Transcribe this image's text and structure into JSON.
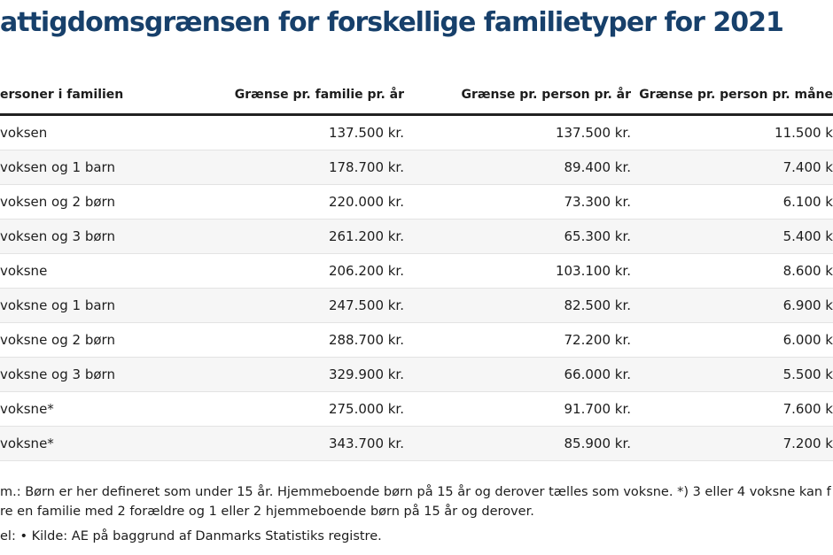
{
  "title": "attigdomsgrænsen for forskellige familietyper for 2021",
  "table": {
    "header": [
      "ersoner i familien",
      "Grænse pr. familie pr. år",
      "Grænse pr. person pr. år",
      "Grænse pr. person pr. måne"
    ],
    "rows": [
      [
        "voksen",
        "137.500 kr.",
        "137.500 kr.",
        "11.500 k"
      ],
      [
        "voksen og 1 barn",
        "178.700 kr.",
        "89.400 kr.",
        "7.400 k"
      ],
      [
        "voksen og 2 børn",
        "220.000 kr.",
        "73.300 kr.",
        "6.100 k"
      ],
      [
        "voksen og 3 børn",
        "261.200 kr.",
        "65.300 kr.",
        "5.400 k"
      ],
      [
        "voksne",
        "206.200 kr.",
        "103.100 kr.",
        "8.600 k"
      ],
      [
        "voksne og 1 barn",
        "247.500 kr.",
        "82.500 kr.",
        "6.900 k"
      ],
      [
        "voksne og 2 børn",
        "288.700 kr.",
        "72.200 kr.",
        "6.000 k"
      ],
      [
        "voksne og 3 børn",
        "329.900 kr.",
        "66.000 kr.",
        "5.500 k"
      ],
      [
        "voksne*",
        "275.000 kr.",
        "91.700 kr.",
        "7.600 k"
      ],
      [
        "voksne*",
        "343.700 kr.",
        "85.900 kr.",
        "7.200 k"
      ]
    ]
  },
  "notes": [
    "m.: Børn er her defineret som under 15 år. Hjemmeboende børn på 15 år og derover tælles som voksne. *) 3 eller 4 voksne kan f",
    "re en familie med 2 forældre og 1 eller 2 hjemmeboende børn på 15 år og derover.",
    "el: • Kilde: AE på baggrund af Danmarks Statistiks registre."
  ]
}
